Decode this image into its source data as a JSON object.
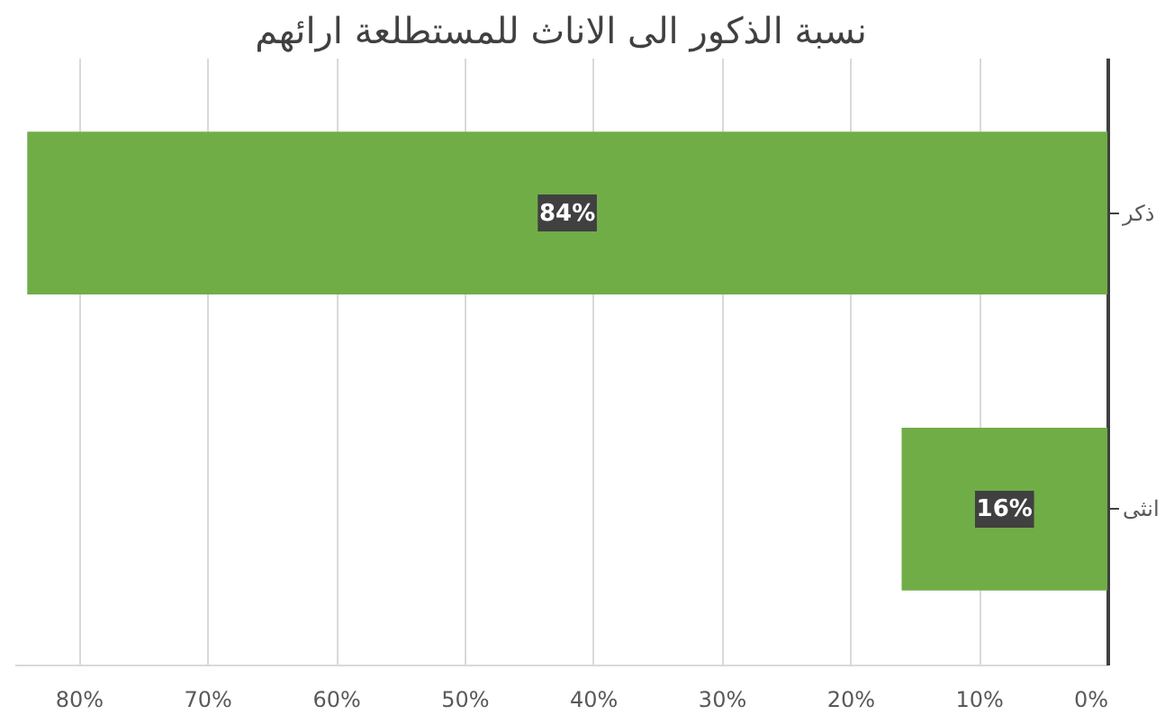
{
  "chart_data": {
    "type": "bar",
    "orientation": "horizontal",
    "title": "نسبة الذكور الى الاناث للمستطلعة ارائهم",
    "categories": [
      "ذكر",
      "انثى"
    ],
    "values": [
      84,
      16
    ],
    "value_labels": [
      "84%",
      "16%"
    ],
    "color": "#70ad47",
    "xlim": [
      85,
      0
    ],
    "xticks": [
      {
        "value": 80,
        "label": "80%"
      },
      {
        "value": 70,
        "label": "70%"
      },
      {
        "value": 60,
        "label": "60%"
      },
      {
        "value": 50,
        "label": "50%"
      },
      {
        "value": 40,
        "label": "40%"
      },
      {
        "value": 30,
        "label": "30%"
      },
      {
        "value": 20,
        "label": "20%"
      },
      {
        "value": 10,
        "label": "10%"
      },
      {
        "value": 0,
        "label": "0%"
      }
    ],
    "grid": "x"
  }
}
